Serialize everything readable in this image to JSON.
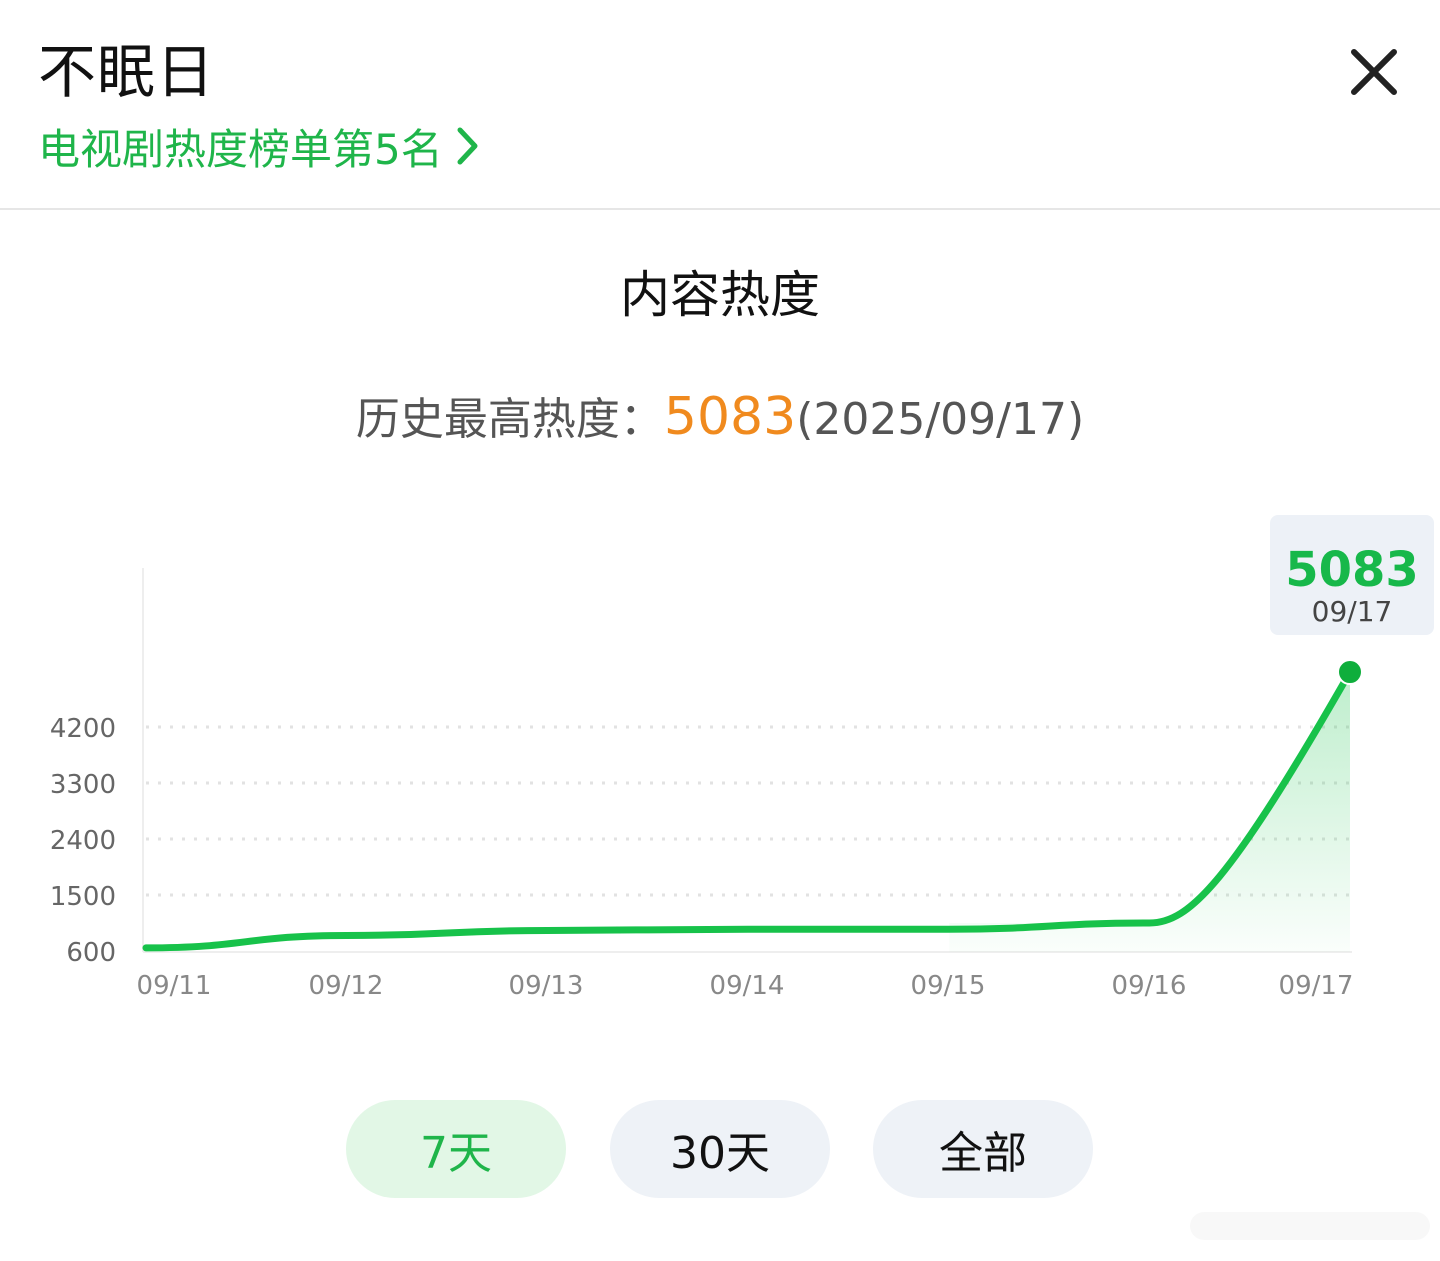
{
  "header": {
    "title": "不眠日",
    "rank_link_label": "电视剧热度榜单第5名",
    "close_icon": "close-icon",
    "chevron_icon": "chevron-right-icon"
  },
  "section": {
    "title": "内容热度",
    "peak_label": "历史最高热度：",
    "peak_value": "5083",
    "peak_date": "(2025/09/17)"
  },
  "tooltip": {
    "value": "5083",
    "date": "09/17"
  },
  "tabs": [
    {
      "label": "7天",
      "active": true
    },
    {
      "label": "30天",
      "active": false
    },
    {
      "label": "全部",
      "active": false
    }
  ],
  "colors": {
    "accent_green": "#1fb54a",
    "line_green": "#17c24a",
    "peak_orange": "#f08a1e",
    "tab_active_bg": "#e2f7e6",
    "tab_bg": "#eef2f7"
  },
  "chart_data": {
    "type": "area",
    "x": [
      "09/11",
      "09/12",
      "09/13",
      "09/14",
      "09/15",
      "09/16",
      "09/17"
    ],
    "y_ticks": [
      600,
      1500,
      2400,
      3300,
      4200
    ],
    "grid": true,
    "series": [
      {
        "values": [
          650,
          850,
          930,
          950,
          950,
          1050,
          5083
        ]
      }
    ],
    "highlight": {
      "x": "09/17",
      "y": 5083
    }
  }
}
